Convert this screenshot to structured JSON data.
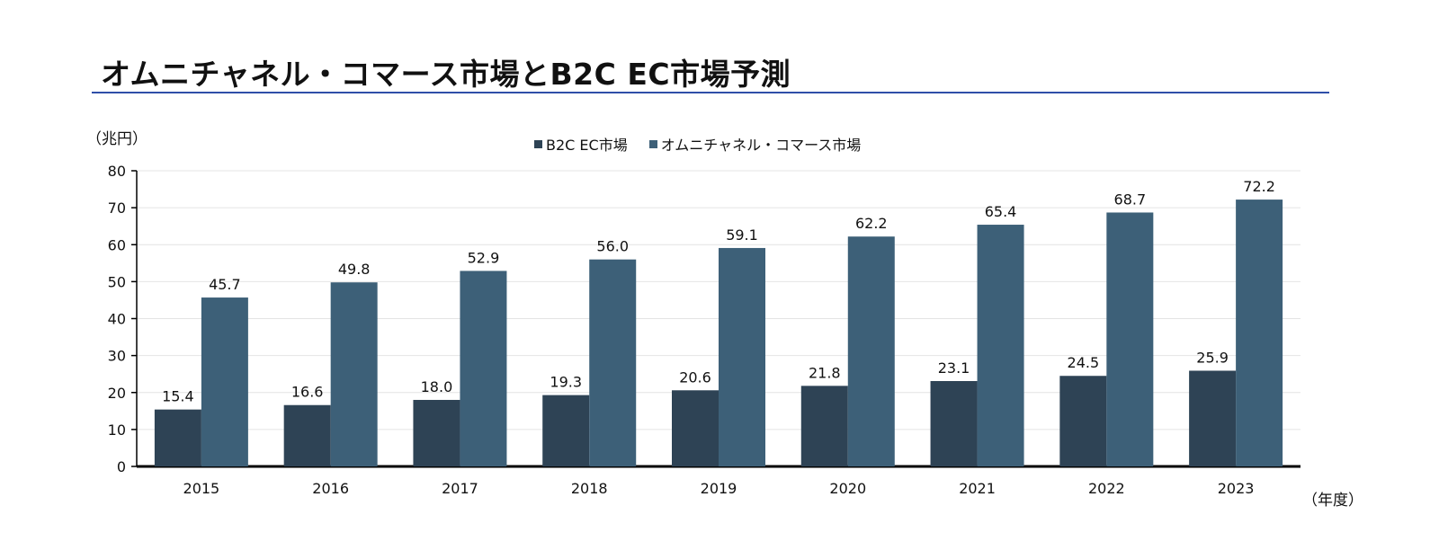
{
  "title": "オムニチャネル・コマース市場とB2C EC市場予測",
  "colors": {
    "b2c": "#2e4355",
    "omni": "#3d6078",
    "title_rule": "#2f4fa8"
  },
  "chart_data": {
    "type": "bar",
    "ylabel": "（兆円）",
    "xlabel": "（年度）",
    "ylim": [
      0,
      80
    ],
    "yticks": [
      "0",
      "10",
      "20",
      "30",
      "40",
      "50",
      "60",
      "70",
      "80"
    ],
    "legend_position": "top-center",
    "grid": true,
    "categories": [
      "2015",
      "2016",
      "2017",
      "2018",
      "2019",
      "2020",
      "2021",
      "2022",
      "2023"
    ],
    "series": [
      {
        "name": "B2C EC市場",
        "values": [
          15.4,
          16.6,
          18.0,
          19.3,
          20.6,
          21.8,
          23.1,
          24.5,
          25.9
        ],
        "labels": [
          "15.4",
          "16.6",
          "18.0",
          "19.3",
          "20.6",
          "21.8",
          "23.1",
          "24.5",
          "25.9"
        ]
      },
      {
        "name": "オムニチャネル・コマース市場",
        "values": [
          45.7,
          49.8,
          52.9,
          56.0,
          59.1,
          62.2,
          65.4,
          68.7,
          72.2
        ],
        "labels": [
          "45.7",
          "49.8",
          "52.9",
          "56.0",
          "59.1",
          "62.2",
          "65.4",
          "68.7",
          "72.2"
        ]
      }
    ]
  }
}
